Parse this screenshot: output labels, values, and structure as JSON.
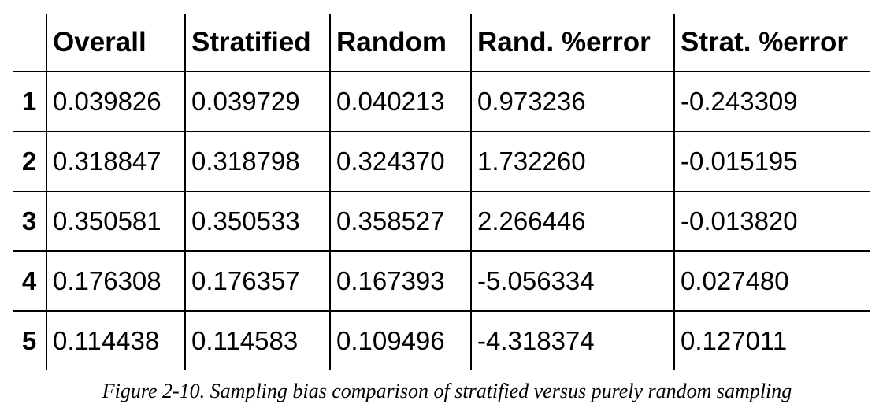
{
  "table": {
    "columns": [
      "",
      "Overall",
      "Stratified",
      "Random",
      "Rand. %error",
      "Strat. %error"
    ],
    "rows": [
      {
        "index": "1",
        "overall": "0.039826",
        "stratified": "0.039729",
        "random": "0.040213",
        "rand_error": "0.973236",
        "strat_error": "-0.243309"
      },
      {
        "index": "2",
        "overall": "0.318847",
        "stratified": "0.318798",
        "random": "0.324370",
        "rand_error": "1.732260",
        "strat_error": "-0.015195"
      },
      {
        "index": "3",
        "overall": "0.350581",
        "stratified": "0.350533",
        "random": "0.358527",
        "rand_error": "2.266446",
        "strat_error": "-0.013820"
      },
      {
        "index": "4",
        "overall": "0.176308",
        "stratified": "0.176357",
        "random": "0.167393",
        "rand_error": "-5.056334",
        "strat_error": "0.027480"
      },
      {
        "index": "5",
        "overall": "0.114438",
        "stratified": "0.114583",
        "random": "0.109496",
        "rand_error": "-4.318374",
        "strat_error": "0.127011"
      }
    ]
  },
  "caption": "Figure 2-10. Sampling bias comparison of stratified versus purely random sampling"
}
